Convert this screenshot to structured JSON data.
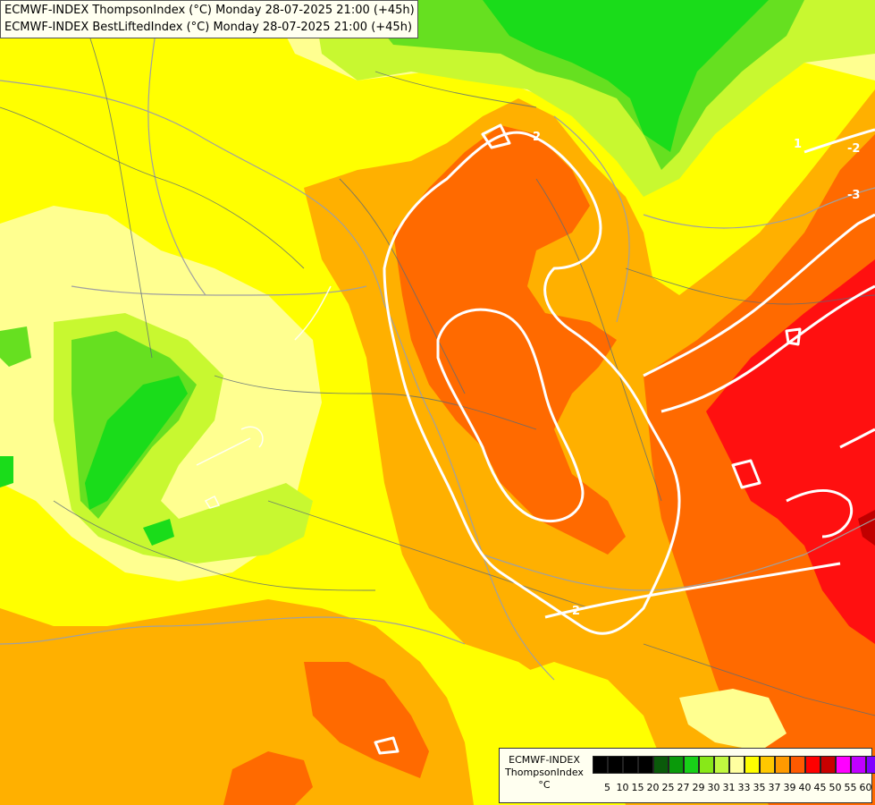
{
  "header": {
    "line1": "ECMWF-INDEX ThompsonIndex (°C) Monday 28-07-2025 21:00 (+45h)",
    "line2": "ECMWF-INDEX BestLiftedIndex (°C) Monday 28-07-2025 21:00 (+45h)"
  },
  "legend": {
    "title": "ECMWF-INDEX",
    "subtitle": "ThompsonIndex",
    "unit": "°C",
    "ticks": [
      "5",
      "10",
      "15",
      "20",
      "25",
      "27",
      "29",
      "30",
      "31",
      "33",
      "35",
      "37",
      "39",
      "40",
      "45",
      "50",
      "55",
      "60"
    ],
    "colors": [
      "#000000",
      "#000000",
      "#000000",
      "#000000",
      "#0a5a0a",
      "#0a9a0a",
      "#18d018",
      "#88e818",
      "#c0f840",
      "#ffffa0",
      "#ffff00",
      "#ffc800",
      "#ff9a00",
      "#ff5a00",
      "#ff0000",
      "#c80000",
      "#ff00ff",
      "#c000ff",
      "#8000ff",
      "#0000ff"
    ]
  },
  "contours": {
    "labels": [
      "2",
      "2",
      "1",
      "-2",
      "-3"
    ]
  },
  "map_colors": {
    "yellow": "#ffff00",
    "light_yellow": "#ffff90",
    "yellow_green": "#c8f830",
    "green": "#66e020",
    "bright_green": "#1adc1a",
    "dark_green": "#10c810",
    "orange": "#ffb000",
    "dark_orange": "#ff6a00",
    "red_orange": "#ff4000",
    "red": "#ff1010",
    "dark_red": "#c00000"
  }
}
